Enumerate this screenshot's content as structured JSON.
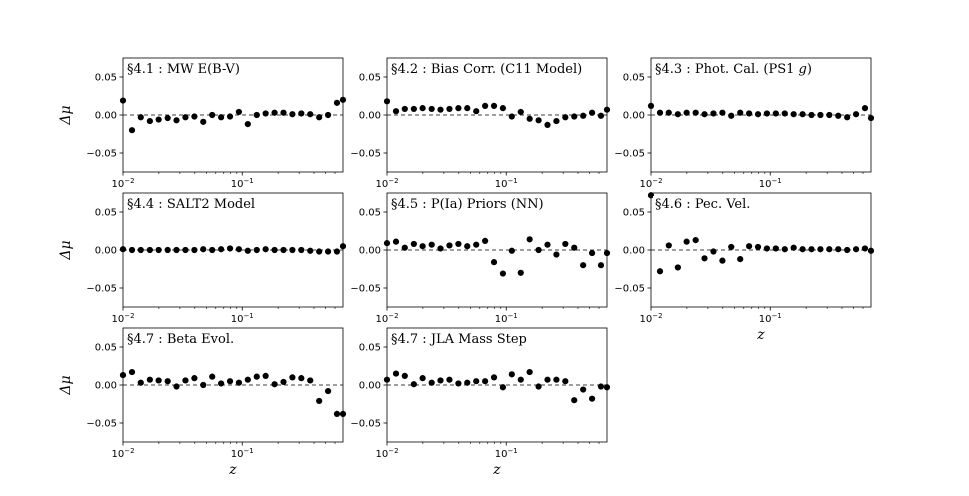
{
  "figure": {
    "x_axis_label": "z",
    "y_axis_label": "Δμ"
  },
  "chart_data": [
    {
      "type": "scatter",
      "title": "§4.1 : MW E(B-V)",
      "title_note": "",
      "xscale": "log",
      "xlim": [
        0.01,
        0.7
      ],
      "ylim": [
        -0.075,
        0.075
      ],
      "xticks": [
        0.01,
        0.1
      ],
      "xtick_labels": [
        "10",
        "10"
      ],
      "xtick_exponents": [
        "−2",
        "−1"
      ],
      "yticks": [
        0.05,
        0.0,
        -0.05
      ],
      "ytick_labels": [
        "0.05",
        "0.00",
        "−0.05"
      ],
      "reference_line": 0.0,
      "x": [
        0.01,
        0.0119,
        0.0141,
        0.0168,
        0.0199,
        0.0237,
        0.0281,
        0.0334,
        0.0397,
        0.0471,
        0.056,
        0.0665,
        0.079,
        0.0938,
        0.1114,
        0.1324,
        0.1572,
        0.1868,
        0.2219,
        0.2635,
        0.313,
        0.3718,
        0.4417,
        0.5247,
        0.6232,
        0.7
      ],
      "y": [
        0.019,
        -0.02,
        -0.003,
        -0.008,
        -0.006,
        -0.004,
        -0.007,
        -0.003,
        -0.002,
        -0.009,
        0.0,
        -0.003,
        -0.002,
        0.004,
        -0.012,
        0.0,
        0.002,
        0.003,
        0.003,
        0.001,
        0.002,
        0.001,
        -0.003,
        0.0,
        0.016,
        0.02
      ]
    },
    {
      "type": "scatter",
      "title": "§4.2 : Bias Corr. (C11 Model)",
      "title_note": "",
      "xscale": "log",
      "xlim": [
        0.01,
        0.7
      ],
      "ylim": [
        -0.075,
        0.075
      ],
      "xticks": [
        0.01,
        0.1
      ],
      "xtick_labels": [
        "10",
        "10"
      ],
      "xtick_exponents": [
        "−2",
        "−1"
      ],
      "yticks": [
        0.05,
        0.0,
        -0.05
      ],
      "ytick_labels": [
        "0.05",
        "0.00",
        "−0.05"
      ],
      "reference_line": 0.0,
      "x": [
        0.01,
        0.0119,
        0.0141,
        0.0168,
        0.0199,
        0.0237,
        0.0281,
        0.0334,
        0.0397,
        0.0471,
        0.056,
        0.0665,
        0.079,
        0.0938,
        0.1114,
        0.1324,
        0.1572,
        0.1868,
        0.2219,
        0.2635,
        0.313,
        0.3718,
        0.4417,
        0.5247,
        0.6232,
        0.7
      ],
      "y": [
        0.018,
        0.005,
        0.008,
        0.008,
        0.009,
        0.008,
        0.007,
        0.008,
        0.009,
        0.009,
        0.005,
        0.012,
        0.012,
        0.009,
        -0.002,
        0.004,
        -0.005,
        -0.007,
        -0.013,
        -0.008,
        -0.003,
        -0.002,
        -0.001,
        0.003,
        -0.001,
        0.007
      ]
    },
    {
      "type": "scatter",
      "title": "§4.3 : Phot. Cal. (PS1 ",
      "title_note": "g",
      "xscale": "log",
      "xlim": [
        0.01,
        0.7
      ],
      "ylim": [
        -0.075,
        0.075
      ],
      "xticks": [
        0.01,
        0.1
      ],
      "xtick_labels": [
        "10",
        "10"
      ],
      "xtick_exponents": [
        "−2",
        "−1"
      ],
      "yticks": [
        0.05,
        0.0,
        -0.05
      ],
      "ytick_labels": [
        "0.05",
        "0.00",
        "−0.05"
      ],
      "reference_line": 0.0,
      "x": [
        0.01,
        0.0119,
        0.0141,
        0.0168,
        0.0199,
        0.0237,
        0.0281,
        0.0334,
        0.0397,
        0.0471,
        0.056,
        0.0665,
        0.079,
        0.0938,
        0.1114,
        0.1324,
        0.1572,
        0.1868,
        0.2219,
        0.2635,
        0.313,
        0.3718,
        0.4417,
        0.5247,
        0.6232,
        0.7
      ],
      "y": [
        0.012,
        0.003,
        0.003,
        0.001,
        0.003,
        0.003,
        0.001,
        0.002,
        0.003,
        -0.001,
        0.003,
        0.002,
        0.001,
        0.002,
        0.002,
        0.002,
        0.001,
        0.001,
        0.0,
        0.0,
        0.0,
        -0.001,
        -0.003,
        0.001,
        0.009,
        -0.004
      ]
    },
    {
      "type": "scatter",
      "title": "§4.4 : SALT2 Model",
      "title_note": "",
      "xscale": "log",
      "xlim": [
        0.01,
        0.7
      ],
      "ylim": [
        -0.075,
        0.075
      ],
      "xticks": [
        0.01,
        0.1
      ],
      "xtick_labels": [
        "10",
        "10"
      ],
      "xtick_exponents": [
        "−2",
        "−1"
      ],
      "yticks": [
        0.05,
        0.0,
        -0.05
      ],
      "ytick_labels": [
        "0.05",
        "0.00",
        "−0.05"
      ],
      "reference_line": 0.0,
      "x": [
        0.01,
        0.0119,
        0.0141,
        0.0168,
        0.0199,
        0.0237,
        0.0281,
        0.0334,
        0.0397,
        0.0471,
        0.056,
        0.0665,
        0.079,
        0.0938,
        0.1114,
        0.1324,
        0.1572,
        0.1868,
        0.2219,
        0.2635,
        0.313,
        0.3718,
        0.4417,
        0.5247,
        0.6232,
        0.7
      ],
      "y": [
        0.001,
        0.0,
        0.0,
        0.0,
        0.0,
        0.0,
        0.0,
        0.0,
        0.0,
        0.001,
        0.0,
        0.001,
        0.002,
        0.001,
        -0.001,
        0.0,
        0.001,
        0.0,
        0.0,
        0.0,
        0.0,
        -0.001,
        -0.002,
        -0.002,
        -0.002,
        0.005
      ]
    },
    {
      "type": "scatter",
      "title": "§4.5 : P(Ia) Priors (NN)",
      "title_note": "",
      "xscale": "log",
      "xlim": [
        0.01,
        0.7
      ],
      "ylim": [
        -0.075,
        0.075
      ],
      "xticks": [
        0.01,
        0.1
      ],
      "xtick_labels": [
        "10",
        "10"
      ],
      "xtick_exponents": [
        "−2",
        "−1"
      ],
      "yticks": [
        0.05,
        0.0,
        -0.05
      ],
      "ytick_labels": [
        "0.05",
        "0.00",
        "−0.05"
      ],
      "reference_line": 0.0,
      "x": [
        0.01,
        0.0119,
        0.0141,
        0.0168,
        0.0199,
        0.0237,
        0.0281,
        0.0334,
        0.0397,
        0.0471,
        0.056,
        0.0665,
        0.079,
        0.0938,
        0.1114,
        0.1324,
        0.1572,
        0.1868,
        0.2219,
        0.2635,
        0.313,
        0.3718,
        0.4417,
        0.5247,
        0.6232,
        0.7
      ],
      "y": [
        0.009,
        0.011,
        0.003,
        0.008,
        0.005,
        0.007,
        0.002,
        0.006,
        0.008,
        0.005,
        0.007,
        0.012,
        -0.016,
        -0.031,
        -0.001,
        -0.03,
        0.014,
        0.0,
        0.007,
        -0.006,
        0.008,
        0.003,
        -0.02,
        -0.004,
        -0.02,
        -0.004
      ]
    },
    {
      "type": "scatter",
      "title": "§4.6 : Pec. Vel.",
      "title_note": "",
      "xscale": "log",
      "xlim": [
        0.01,
        0.7
      ],
      "ylim": [
        -0.075,
        0.075
      ],
      "xticks": [
        0.01,
        0.1
      ],
      "xtick_labels": [
        "10",
        "10"
      ],
      "xtick_exponents": [
        "−2",
        "−1"
      ],
      "yticks": [
        0.05,
        0.0,
        -0.05
      ],
      "ytick_labels": [
        "0.05",
        "0.00",
        "−0.05"
      ],
      "reference_line": 0.0,
      "x": [
        0.01,
        0.0119,
        0.0141,
        0.0168,
        0.0199,
        0.0237,
        0.0281,
        0.0334,
        0.0397,
        0.0471,
        0.056,
        0.0665,
        0.079,
        0.0938,
        0.1114,
        0.1324,
        0.1572,
        0.1868,
        0.2219,
        0.2635,
        0.313,
        0.3718,
        0.4417,
        0.5247,
        0.6232,
        0.7
      ],
      "y": [
        0.072,
        -0.028,
        0.006,
        -0.023,
        0.011,
        0.013,
        -0.011,
        -0.002,
        -0.014,
        0.004,
        -0.012,
        0.005,
        0.004,
        0.002,
        0.002,
        0.001,
        0.003,
        0.001,
        0.001,
        0.001,
        0.001,
        0.001,
        0.0,
        0.001,
        0.002,
        -0.001
      ]
    },
    {
      "type": "scatter",
      "title": "§4.7 : Beta Evol.",
      "title_note": "",
      "xscale": "log",
      "xlim": [
        0.01,
        0.7
      ],
      "ylim": [
        -0.075,
        0.075
      ],
      "xticks": [
        0.01,
        0.1
      ],
      "xtick_labels": [
        "10",
        "10"
      ],
      "xtick_exponents": [
        "−2",
        "−1"
      ],
      "yticks": [
        0.05,
        0.0,
        -0.05
      ],
      "ytick_labels": [
        "0.05",
        "0.00",
        "−0.05"
      ],
      "reference_line": 0.0,
      "x": [
        0.01,
        0.0119,
        0.0141,
        0.0168,
        0.0199,
        0.0237,
        0.0281,
        0.0334,
        0.0397,
        0.0471,
        0.056,
        0.0665,
        0.079,
        0.0938,
        0.1114,
        0.1324,
        0.1572,
        0.1868,
        0.2219,
        0.2635,
        0.313,
        0.3718,
        0.4417,
        0.5247,
        0.6232,
        0.7
      ],
      "y": [
        0.013,
        0.017,
        0.003,
        0.007,
        0.006,
        0.005,
        -0.002,
        0.006,
        0.009,
        0.0,
        0.011,
        0.002,
        0.005,
        0.003,
        0.007,
        0.011,
        0.012,
        0.001,
        0.004,
        0.01,
        0.009,
        0.006,
        -0.021,
        -0.008,
        -0.038,
        -0.038
      ]
    },
    {
      "type": "scatter",
      "title": "§4.7 : JLA Mass Step",
      "title_note": "",
      "xscale": "log",
      "xlim": [
        0.01,
        0.7
      ],
      "ylim": [
        -0.075,
        0.075
      ],
      "xticks": [
        0.01,
        0.1
      ],
      "xtick_labels": [
        "10",
        "10"
      ],
      "xtick_exponents": [
        "−2",
        "−1"
      ],
      "yticks": [
        0.05,
        0.0,
        -0.05
      ],
      "ytick_labels": [
        "0.05",
        "0.00",
        "−0.05"
      ],
      "reference_line": 0.0,
      "x": [
        0.01,
        0.0119,
        0.0141,
        0.0168,
        0.0199,
        0.0237,
        0.0281,
        0.0334,
        0.0397,
        0.0471,
        0.056,
        0.0665,
        0.079,
        0.0938,
        0.1114,
        0.1324,
        0.1572,
        0.1868,
        0.2219,
        0.2635,
        0.313,
        0.3718,
        0.4417,
        0.5247,
        0.6232,
        0.7
      ],
      "y": [
        0.007,
        0.015,
        0.012,
        0.001,
        0.009,
        0.003,
        0.006,
        0.007,
        0.002,
        0.003,
        0.005,
        0.005,
        0.01,
        -0.003,
        0.014,
        0.007,
        0.017,
        -0.002,
        0.007,
        0.007,
        0.005,
        -0.02,
        -0.006,
        -0.018,
        -0.002,
        -0.003
      ]
    }
  ]
}
